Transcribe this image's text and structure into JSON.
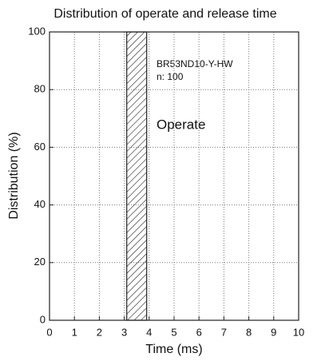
{
  "chart_data": {
    "type": "histogram",
    "title": "Distribution of operate and release time",
    "xlabel": "Time (ms)",
    "ylabel": "Distribution (%)",
    "bins": [
      3.1,
      3.9
    ],
    "values": [
      100
    ],
    "xlim": [
      0,
      10
    ],
    "xticks": [
      0,
      1,
      2,
      3,
      4,
      5,
      6,
      7,
      8,
      9,
      10
    ],
    "ylim": [
      0,
      100
    ],
    "yticks": [
      0,
      20,
      40,
      60,
      80,
      100
    ],
    "grid": true,
    "hatch": true,
    "color": "#222222",
    "annotations": [
      "BR53ND10-Y-HW",
      "n: 100",
      "Operate"
    ]
  }
}
